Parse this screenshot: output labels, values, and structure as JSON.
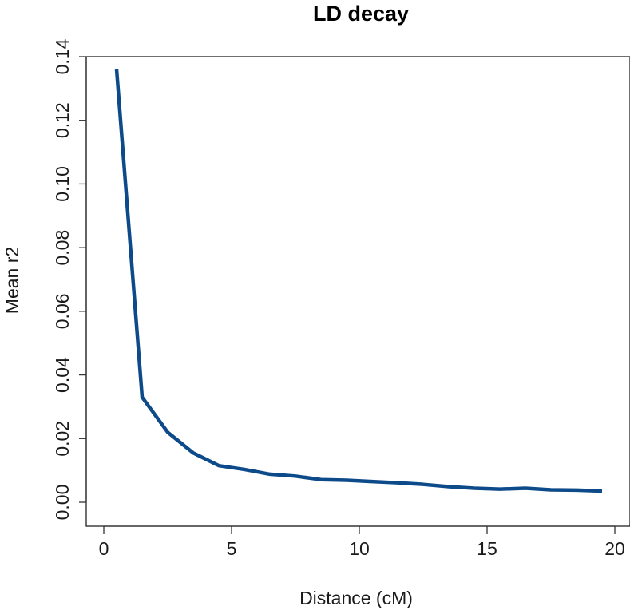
{
  "chart_data": {
    "type": "line",
    "title": "LD decay",
    "xlabel": "Distance (cM)",
    "ylabel": "Mean r2",
    "xlim": [
      0,
      20
    ],
    "ylim": [
      0,
      0.14
    ],
    "x_ticks": [
      "0",
      "5",
      "10",
      "15",
      "20"
    ],
    "y_ticks": [
      "0.00",
      "0.02",
      "0.04",
      "0.06",
      "0.08",
      "0.10",
      "0.12",
      "0.14"
    ],
    "grid": false,
    "legend": "none",
    "line_color": "#0d4a8a",
    "series": [
      {
        "x": [
          0.5,
          1.5,
          2.5,
          3.5,
          4.5,
          5.5,
          6.5,
          7.5,
          8.5,
          9.5,
          10.5,
          11.5,
          12.5,
          13.5,
          14.5,
          15.5,
          16.5,
          17.5,
          18.5,
          19.5
        ],
        "y": [
          0.136,
          0.033,
          0.022,
          0.0155,
          0.0115,
          0.0103,
          0.0088,
          0.0082,
          0.0071,
          0.0069,
          0.0065,
          0.0061,
          0.0056,
          0.0049,
          0.0044,
          0.0041,
          0.0044,
          0.0039,
          0.0038,
          0.0035
        ]
      }
    ]
  }
}
